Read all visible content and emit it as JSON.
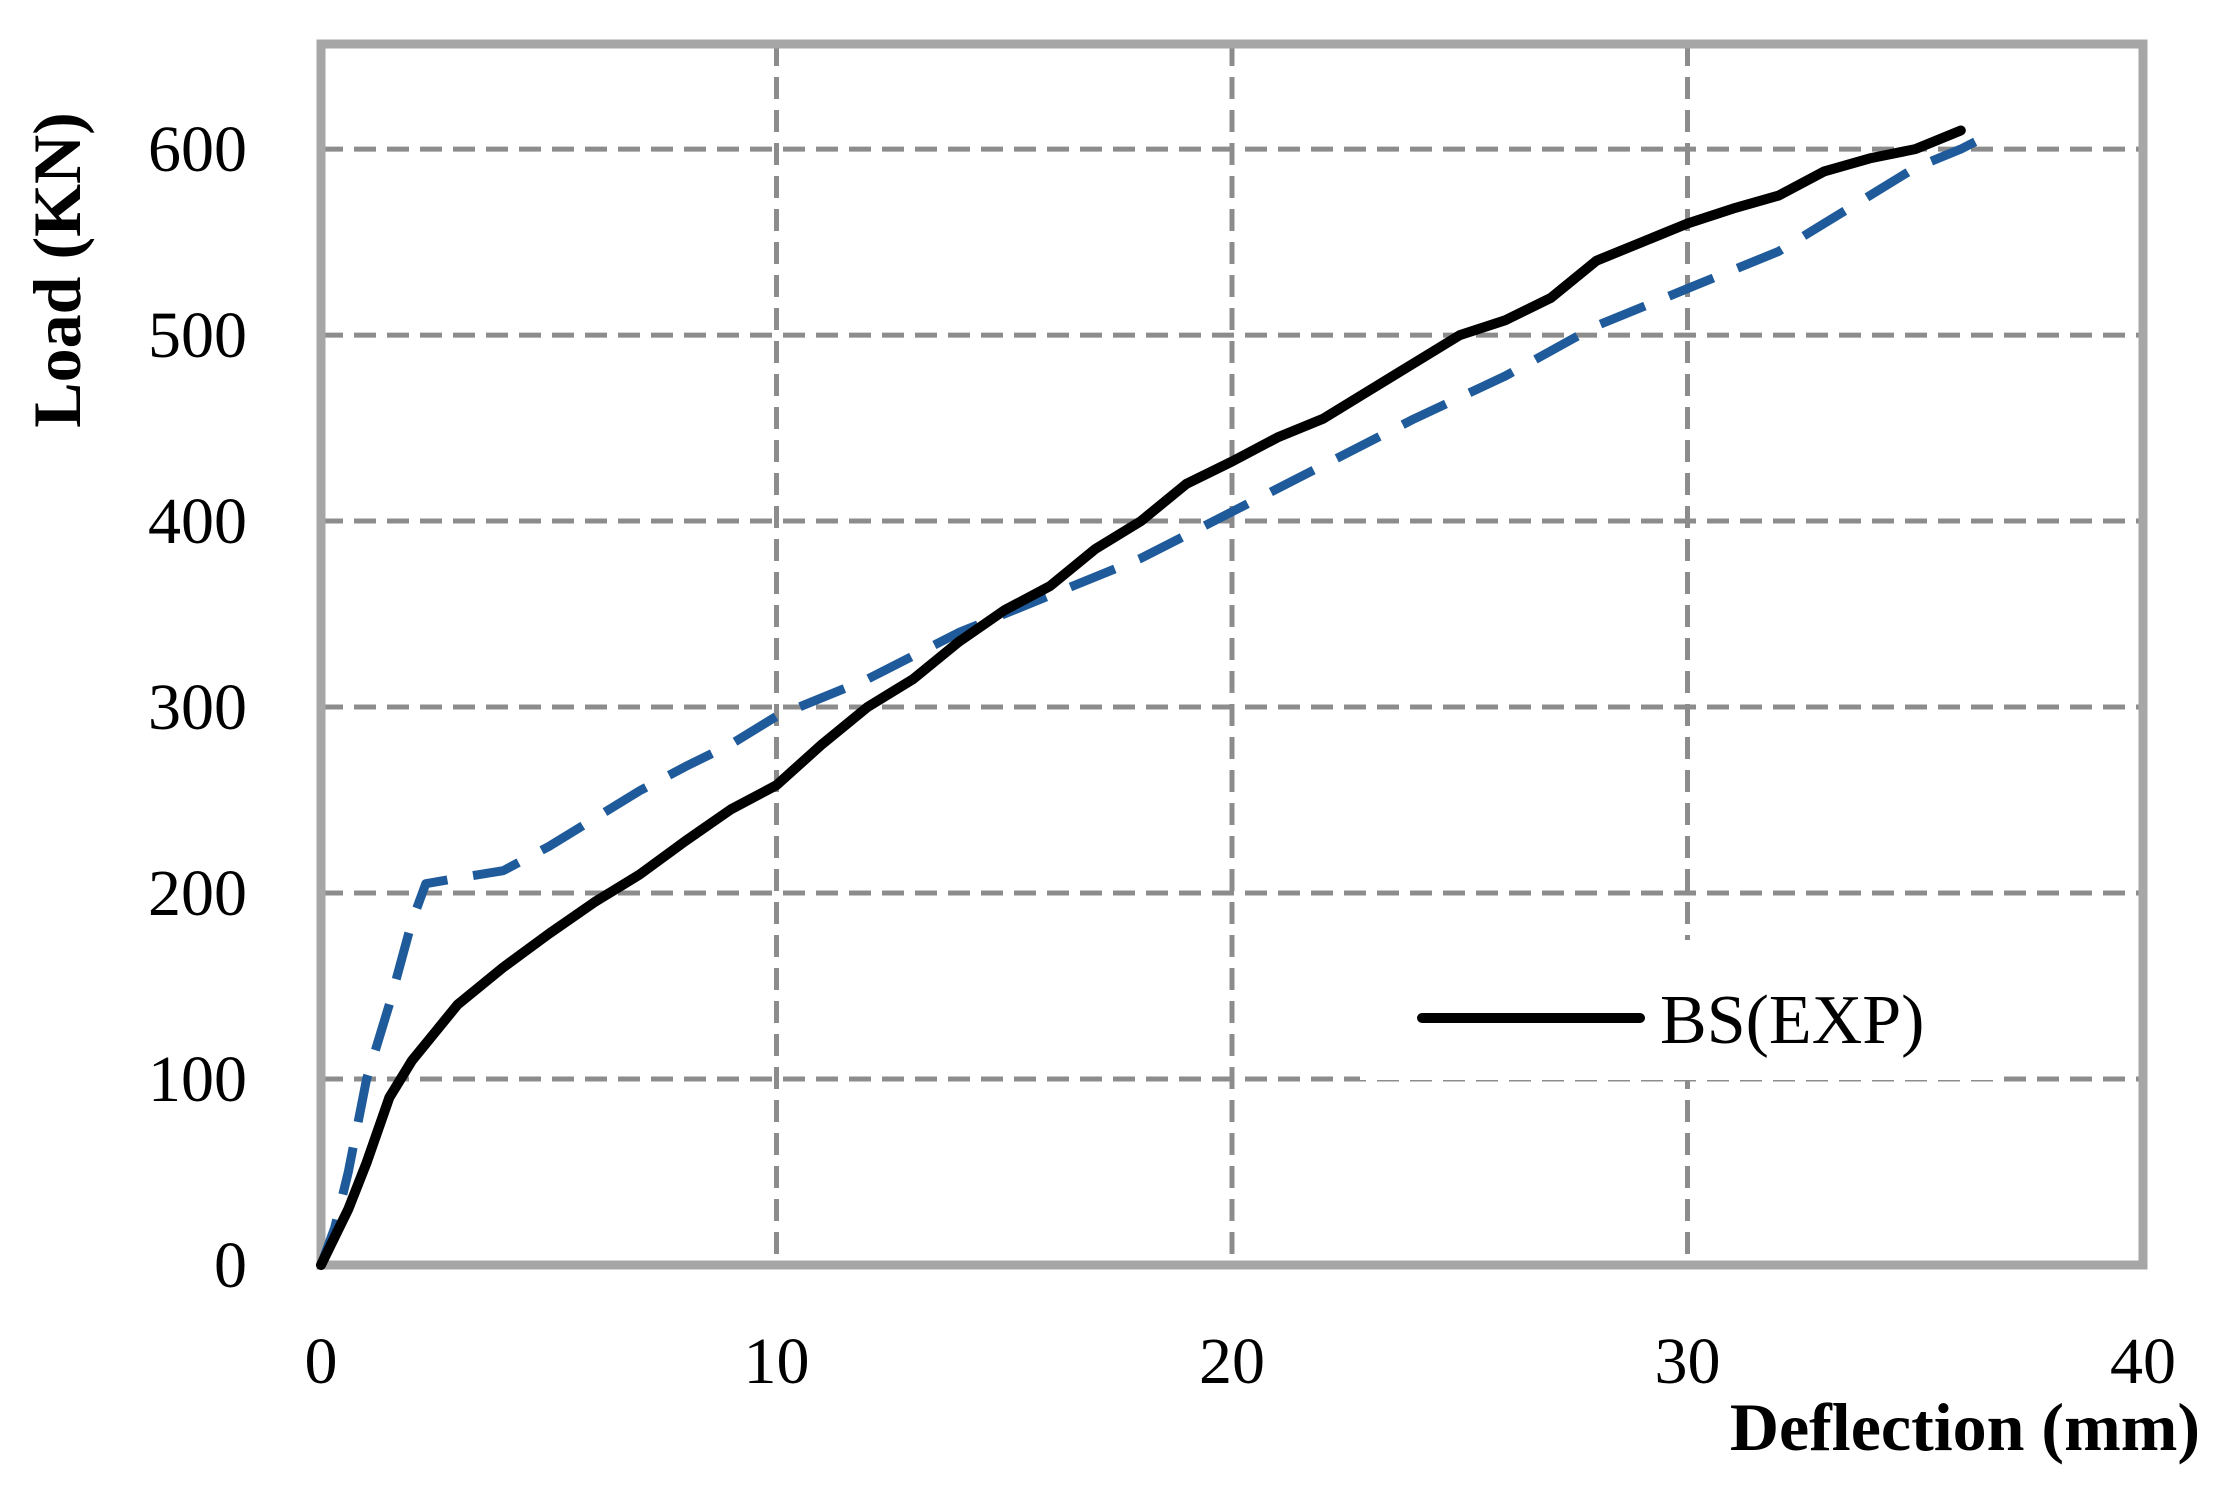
{
  "chart_data": {
    "type": "line",
    "title": "",
    "xlabel": "Deflection (mm)",
    "ylabel": "Load (KN)",
    "xlim": [
      0,
      40
    ],
    "ylim": [
      0,
      600
    ],
    "x_ticks": [
      "0",
      "10",
      "20",
      "30",
      "40"
    ],
    "y_ticks": [
      "0",
      "100",
      "200",
      "300",
      "400",
      "500",
      "600"
    ],
    "grid": true,
    "legend_position": "bottom-right",
    "series": [
      {
        "name": "BS(EXP)",
        "color": "#000000",
        "style": "solid",
        "x": [
          0,
          0.2,
          0.6,
          1.0,
          1.5,
          2.0,
          2.5,
          3.0,
          4.0,
          5.0,
          6.0,
          7.0,
          8.0,
          9.0,
          10.0,
          11.0,
          12.0,
          13.0,
          14.0,
          15.0,
          16.0,
          17.0,
          18.0,
          19.0,
          20.0,
          21.0,
          22.0,
          23.0,
          24.0,
          25.0,
          26.0,
          27.0,
          28.0,
          29.0,
          30.0,
          31.0,
          32.0,
          33.0,
          34.0,
          35.0,
          36.0
        ],
        "y": [
          0,
          10,
          30,
          55,
          90,
          110,
          125,
          140,
          160,
          178,
          195,
          210,
          228,
          245,
          258,
          280,
          300,
          315,
          335,
          352,
          365,
          385,
          400,
          420,
          432,
          445,
          455,
          470,
          485,
          500,
          508,
          520,
          540,
          550,
          560,
          568,
          575,
          588,
          595,
          600,
          610
        ]
      },
      {
        "name": "",
        "color": "#1f5b9a",
        "style": "dashed",
        "x": [
          0,
          0.3,
          0.6,
          1.0,
          1.5,
          2.0,
          2.3,
          3.0,
          4.0,
          5.0,
          6.0,
          7.0,
          8.0,
          9.0,
          10.0,
          12.0,
          14.0,
          16.0,
          18.0,
          20.0,
          22.0,
          24.0,
          26.0,
          28.0,
          30.0,
          32.0,
          33.0,
          34.0,
          35.0,
          36.0,
          36.8
        ],
        "y": [
          0,
          20,
          50,
          100,
          140,
          185,
          205,
          208,
          212,
          225,
          240,
          255,
          268,
          280,
          295,
          315,
          340,
          360,
          380,
          405,
          430,
          455,
          478,
          505,
          525,
          545,
          560,
          575,
          590,
          600,
          610
        ]
      }
    ]
  }
}
